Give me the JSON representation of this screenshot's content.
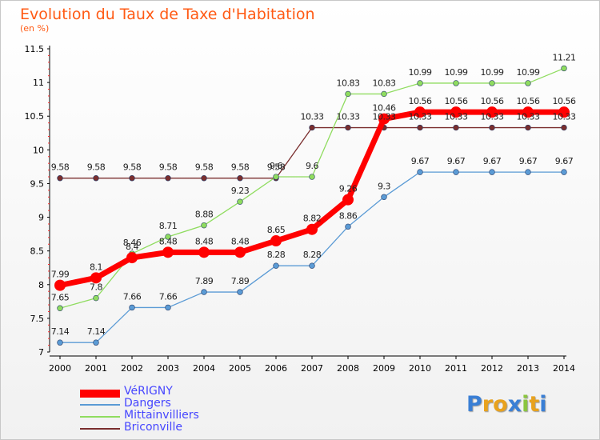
{
  "chart_data": {
    "type": "line",
    "title": "Evolution du Taux de Taxe d'Habitation",
    "subtitle": "(en %)",
    "x": [
      "2000",
      "2001",
      "2002",
      "2003",
      "2004",
      "2005",
      "2006",
      "2007",
      "2008",
      "2009",
      "2010",
      "2011",
      "2012",
      "2013",
      "2014"
    ],
    "ylim": [
      7,
      11.5
    ],
    "yticks": [
      "7",
      "7.5",
      "8",
      "8.5",
      "9",
      "9.5",
      "10",
      "10.5",
      "11",
      "11.5"
    ],
    "grid": false,
    "legend_position": "bottom-left",
    "series": [
      {
        "name": "VéRIGNY",
        "color": "#ff0000",
        "values": [
          7.99,
          8.1,
          8.4,
          8.48,
          8.48,
          8.48,
          8.65,
          8.82,
          9.26,
          10.46,
          10.56,
          10.56,
          10.56,
          10.56,
          10.56
        ],
        "labels": [
          "7.99",
          "8.1",
          "8.4",
          "8.48",
          "8.48",
          "8.48",
          "8.65",
          "8.82",
          "9.26",
          "10.46",
          "10.56",
          "10.56",
          "10.56",
          "10.56",
          "10.56"
        ]
      },
      {
        "name": "Dangers",
        "color": "#5b9bd5",
        "values": [
          7.14,
          7.14,
          7.66,
          7.66,
          7.89,
          7.89,
          8.28,
          8.28,
          8.86,
          9.3,
          9.67,
          9.67,
          9.67,
          9.67,
          9.67
        ],
        "labels": [
          "7.14",
          "7.14",
          "7.66",
          "7.66",
          "7.89",
          "7.89",
          "8.28",
          "8.28",
          "8.86",
          "9.3",
          "9.67",
          "9.67",
          "9.67",
          "9.67",
          "9.67"
        ]
      },
      {
        "name": "Mittainvilliers",
        "color": "#8fdc5f",
        "values": [
          7.65,
          7.8,
          8.46,
          8.71,
          8.88,
          9.23,
          9.6,
          9.6,
          10.83,
          10.83,
          10.99,
          10.99,
          10.99,
          10.99,
          11.21
        ],
        "labels": [
          "7.65",
          "7.8",
          "8.46",
          "8.71",
          "8.88",
          "9.23",
          "9.6",
          "9.6",
          "10.83",
          "10.83",
          "10.99",
          "10.99",
          "10.99",
          "10.99",
          "11.21"
        ]
      },
      {
        "name": "Briconville",
        "color": "#7a2e2e",
        "values": [
          9.58,
          9.58,
          9.58,
          9.58,
          9.58,
          9.58,
          9.58,
          10.33,
          10.33,
          10.33,
          10.33,
          10.33,
          10.33,
          10.33,
          10.33
        ],
        "labels": [
          "9.58",
          "9.58",
          "9.58",
          "9.58",
          "9.58",
          "9.58",
          "9.58",
          "10.33",
          "10.33",
          "10.33",
          "10.33",
          "10.33",
          "10.33",
          "10.33",
          "10.33"
        ]
      }
    ]
  },
  "logo": {
    "text": "Proxiti",
    "colors": [
      "#3a7fd5",
      "#e8a21e",
      "#e8a21e",
      "#3a7fd5",
      "#8bc53f",
      "#e8a21e",
      "#3a7fd5"
    ]
  }
}
